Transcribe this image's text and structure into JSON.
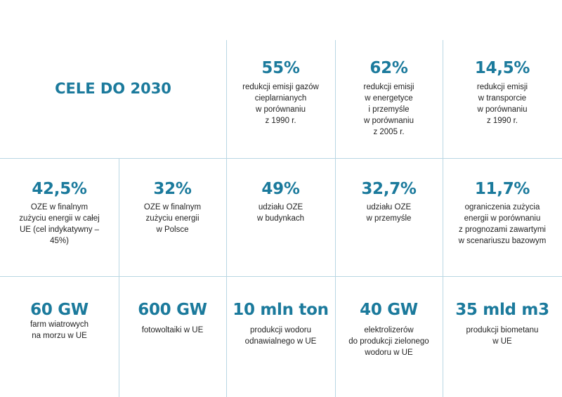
{
  "title": "CELE DO 2030",
  "row1": [
    {
      "value": "55%",
      "desc": "redukcji emisji gazów\ncieplarnianych\nw porównaniu\nz 1990 r."
    },
    {
      "value": "62%",
      "desc": "redukcji emisji\nw energetyce\ni przemyśle\nw porównaniu\nz 2005 r."
    },
    {
      "value": "14,5%",
      "desc": "redukcji emisji\nw transporcie\nw porównaniu\nz 1990 r."
    }
  ],
  "row2": [
    {
      "value": "42,5%",
      "desc": "OZE w finalnym\nzużyciu energii w całej\nUE (cel indykatywny –\n45%)"
    },
    {
      "value": "32%",
      "desc": "OZE w finalnym\nzużyciu energii\nw Polsce"
    },
    {
      "value": "49%",
      "desc": "udziału OZE\nw budynkach"
    },
    {
      "value": "32,7%",
      "desc": "udziału OZE\nw przemyśle"
    },
    {
      "value": "11,7%",
      "desc": "ograniczenia zużycia\nenergii w porównaniu\nz prognozami zawartymi\nw scenariuszu bazowym"
    }
  ],
  "row3": [
    {
      "value": "60 GW",
      "desc": "farm wiatrowych\nna morzu w UE"
    },
    {
      "value": "600 GW",
      "desc": "fotowoltaiki w UE"
    },
    {
      "value": "10 mln ton",
      "desc": "produkcji wodoru\nodnawialnego w UE"
    },
    {
      "value": "40 GW",
      "desc": "elektrolizerów\ndo produkcji zielonego\nwodoru w UE"
    },
    {
      "value": "35 mld m3",
      "desc": "produkcji biometanu\nw UE"
    }
  ]
}
